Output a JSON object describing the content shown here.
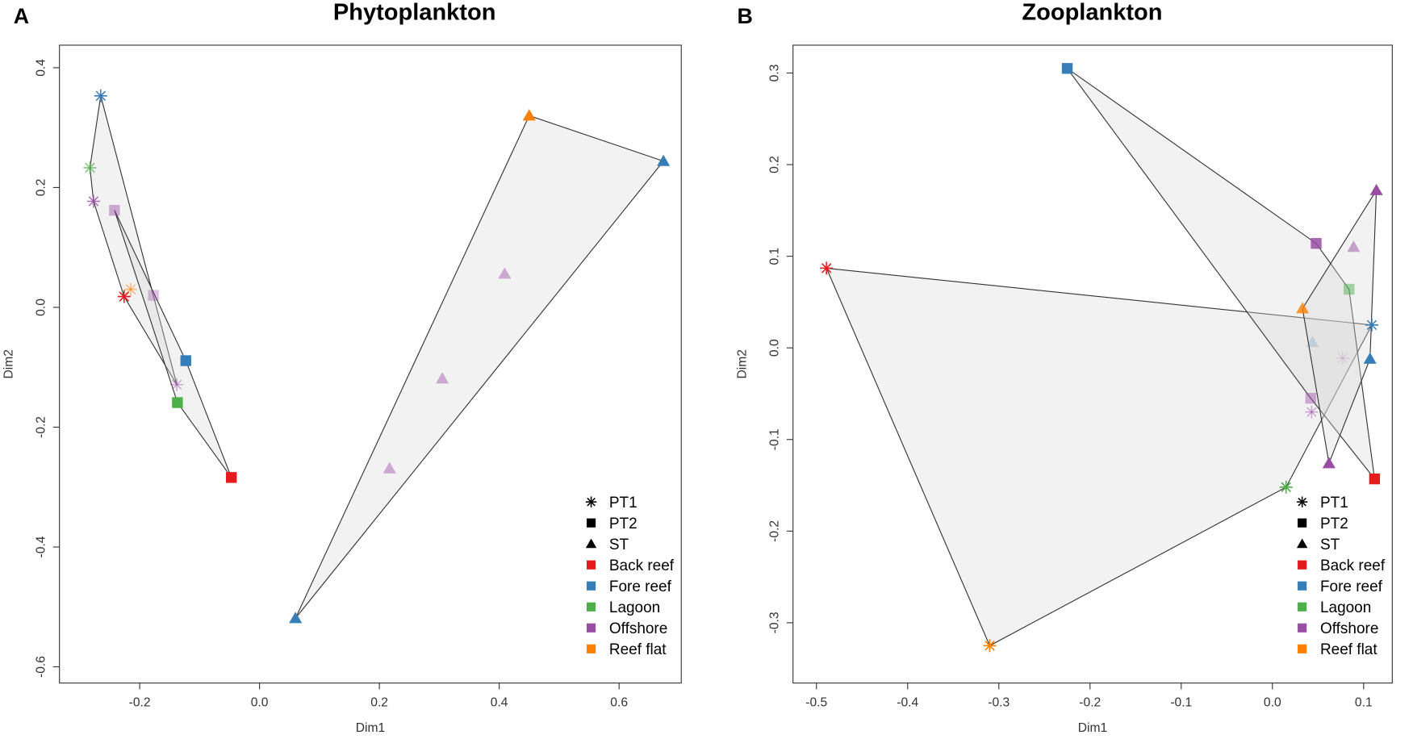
{
  "colors": {
    "Back reef": "#e41a1c",
    "Fore reef": "#377eb8",
    "Lagoon": "#4daf4a",
    "Offshore": "#984ea3",
    "Reef flat": "#ff7f00"
  },
  "chart_data": [
    {
      "type": "scatter",
      "panel_label": "A",
      "title": "Phytoplankton",
      "xlabel": "Dim1",
      "ylabel": "Dim2",
      "xlim": [
        -0.31,
        0.7
      ],
      "ylim": [
        -0.6,
        0.4
      ],
      "xticks": [
        "-0.2",
        "0.0",
        "0.2",
        "0.4",
        "0.6"
      ],
      "yticks": [
        "-0.6",
        "-0.4",
        "-0.2",
        "0.0",
        "0.2",
        "0.4"
      ],
      "legend": {
        "placement": "bottom-right",
        "shapes": [
          "PT1",
          "PT2",
          "ST"
        ],
        "sites": [
          "Back reef",
          "Fore reef",
          "Lagoon",
          "Offshore",
          "Reef flat"
        ]
      },
      "points": [
        {
          "type": "PT1",
          "site": "Fore reef",
          "x": -0.265,
          "y": 0.353,
          "alpha": 1
        },
        {
          "type": "PT1",
          "site": "Lagoon",
          "x": -0.283,
          "y": 0.233,
          "alpha": 0.7
        },
        {
          "type": "PT1",
          "site": "Offshore",
          "x": -0.277,
          "y": 0.177,
          "alpha": 0.8
        },
        {
          "type": "PT2",
          "site": "Offshore",
          "x": -0.242,
          "y": 0.162,
          "alpha": 0.45
        },
        {
          "type": "PT1",
          "site": "Reef flat",
          "x": -0.215,
          "y": 0.03,
          "alpha": 0.5
        },
        {
          "type": "PT1",
          "site": "Back reef",
          "x": -0.226,
          "y": 0.018,
          "alpha": 1
        },
        {
          "type": "PT2",
          "site": "Offshore",
          "x": -0.177,
          "y": 0.02,
          "alpha": 0.35
        },
        {
          "type": "PT2",
          "site": "Fore reef",
          "x": -0.123,
          "y": -0.089,
          "alpha": 1
        },
        {
          "type": "PT1",
          "site": "Offshore",
          "x": -0.138,
          "y": -0.129,
          "alpha": 0.45
        },
        {
          "type": "PT2",
          "site": "Lagoon",
          "x": -0.137,
          "y": -0.159,
          "alpha": 1
        },
        {
          "type": "PT2",
          "site": "Back reef",
          "x": -0.047,
          "y": -0.284,
          "alpha": 1
        },
        {
          "type": "ST",
          "site": "Reef flat",
          "x": 0.45,
          "y": 0.32,
          "alpha": 1
        },
        {
          "type": "ST",
          "site": "Fore reef",
          "x": 0.674,
          "y": 0.244,
          "alpha": 1
        },
        {
          "type": "ST",
          "site": "Offshore",
          "x": 0.409,
          "y": 0.056,
          "alpha": 0.45
        },
        {
          "type": "ST",
          "site": "Offshore",
          "x": 0.305,
          "y": -0.119,
          "alpha": 0.45
        },
        {
          "type": "ST",
          "site": "Offshore",
          "x": 0.217,
          "y": -0.269,
          "alpha": 0.45
        },
        {
          "type": "ST",
          "site": "Fore reef",
          "x": 0.06,
          "y": -0.519,
          "alpha": 1
        }
      ]
    },
    {
      "type": "scatter",
      "panel_label": "B",
      "title": "Zooplankton",
      "xlabel": "Dim1",
      "ylabel": "Dim2",
      "xlim": [
        -0.52,
        0.13
      ],
      "ylim": [
        -0.35,
        0.33
      ],
      "xticks": [
        "-0.5",
        "-0.4",
        "-0.3",
        "-0.2",
        "-0.1",
        "0.0",
        "0.1"
      ],
      "yticks": [
        "-0.3",
        "-0.2",
        "-0.1",
        "0.0",
        "0.1",
        "0.2",
        "0.3"
      ],
      "legend": {
        "placement": "bottom-right",
        "shapes": [
          "PT1",
          "PT2",
          "ST"
        ],
        "sites": [
          "Back reef",
          "Fore reef",
          "Lagoon",
          "Offshore",
          "Reef flat"
        ]
      },
      "points": [
        {
          "type": "PT2",
          "site": "Fore reef",
          "x": -0.225,
          "y": 0.305,
          "alpha": 1
        },
        {
          "type": "PT1",
          "site": "Back reef",
          "x": -0.489,
          "y": 0.087,
          "alpha": 1
        },
        {
          "type": "PT1",
          "site": "Reef flat",
          "x": -0.31,
          "y": -0.325,
          "alpha": 1
        },
        {
          "type": "PT1",
          "site": "Lagoon",
          "x": 0.015,
          "y": -0.152,
          "alpha": 1
        },
        {
          "type": "ST",
          "site": "Offshore",
          "x": 0.114,
          "y": 0.172,
          "alpha": 1
        },
        {
          "type": "PT2",
          "site": "Offshore",
          "x": 0.048,
          "y": 0.114,
          "alpha": 0.85
        },
        {
          "type": "ST",
          "site": "Offshore",
          "x": 0.089,
          "y": 0.11,
          "alpha": 0.5
        },
        {
          "type": "PT2",
          "site": "Lagoon",
          "x": 0.084,
          "y": 0.064,
          "alpha": 0.5
        },
        {
          "type": "ST",
          "site": "Reef flat",
          "x": 0.033,
          "y": 0.043,
          "alpha": 0.8
        },
        {
          "type": "PT1",
          "site": "Fore reef",
          "x": 0.109,
          "y": 0.025,
          "alpha": 1
        },
        {
          "type": "ST",
          "site": "Fore reef",
          "x": 0.044,
          "y": 0.006,
          "alpha": 0.2
        },
        {
          "type": "PT1",
          "site": "Offshore",
          "x": 0.077,
          "y": -0.011,
          "alpha": 0.15
        },
        {
          "type": "ST",
          "site": "Fore reef",
          "x": 0.107,
          "y": -0.012,
          "alpha": 1
        },
        {
          "type": "PT2",
          "site": "Offshore",
          "x": 0.042,
          "y": -0.055,
          "alpha": 0.45
        },
        {
          "type": "PT1",
          "site": "Offshore",
          "x": 0.043,
          "y": -0.07,
          "alpha": 0.45
        },
        {
          "type": "ST",
          "site": "Offshore",
          "x": 0.062,
          "y": -0.126,
          "alpha": 1
        },
        {
          "type": "PT2",
          "site": "Back reef",
          "x": 0.112,
          "y": -0.143,
          "alpha": 1
        }
      ]
    }
  ]
}
